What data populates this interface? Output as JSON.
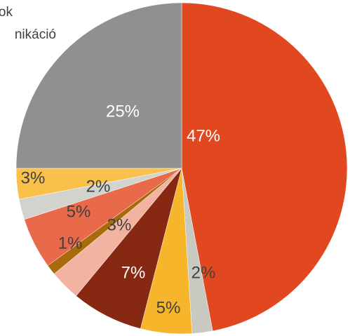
{
  "chart_data": {
    "type": "pie",
    "legend_texts": [
      "ok",
      "nikáció"
    ],
    "categories": [
      null,
      null,
      null,
      null,
      null,
      null,
      null,
      null,
      null,
      null
    ],
    "values": [
      47,
      2,
      5,
      7,
      3,
      1,
      5,
      2,
      3,
      25
    ],
    "value_labels": [
      "47%",
      "2%",
      "5%",
      "7%",
      "3%",
      "1%",
      "5%",
      "2%",
      "3%",
      "25%"
    ],
    "colors": [
      "#e2481f",
      "#c9c9c1",
      "#f7b52b",
      "#872912",
      "#f2b4a0",
      "#a86a0a",
      "#e86a4a",
      "#d2d2ce",
      "#f9c04c",
      "#909090"
    ]
  }
}
